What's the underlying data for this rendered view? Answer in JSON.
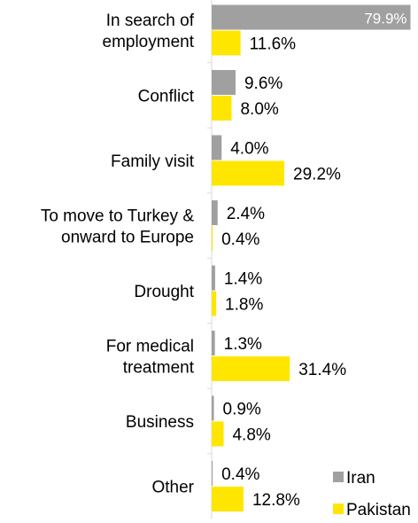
{
  "chart_data": {
    "type": "bar",
    "orientation": "horizontal",
    "categories": [
      [
        "In search of",
        "employment"
      ],
      [
        "Conflict"
      ],
      [
        "Family visit"
      ],
      [
        "To move to Turkey &",
        "onward to Europe"
      ],
      [
        "Drought"
      ],
      [
        "For medical",
        "treatment"
      ],
      [
        "Business"
      ],
      [
        "Other"
      ]
    ],
    "series": [
      {
        "name": "Iran",
        "color": "#a0a0a0",
        "values": [
          79.9,
          9.6,
          4.0,
          2.4,
          1.4,
          1.3,
          0.9,
          0.4
        ],
        "labels": [
          "79.9%",
          "9.6%",
          "4.0%",
          "2.4%",
          "1.4%",
          "1.3%",
          "0.9%",
          "0.4%"
        ]
      },
      {
        "name": "Pakistan",
        "color": "#ffe600",
        "values": [
          11.6,
          8.0,
          29.2,
          0.4,
          1.8,
          31.4,
          4.8,
          12.8
        ],
        "labels": [
          "11.6%",
          "8.0%",
          "29.2%",
          "0.4%",
          "1.8%",
          "31.4%",
          "4.8%",
          "12.8%"
        ]
      }
    ],
    "grid": false,
    "legend": {
      "position": "bottom-right"
    }
  }
}
